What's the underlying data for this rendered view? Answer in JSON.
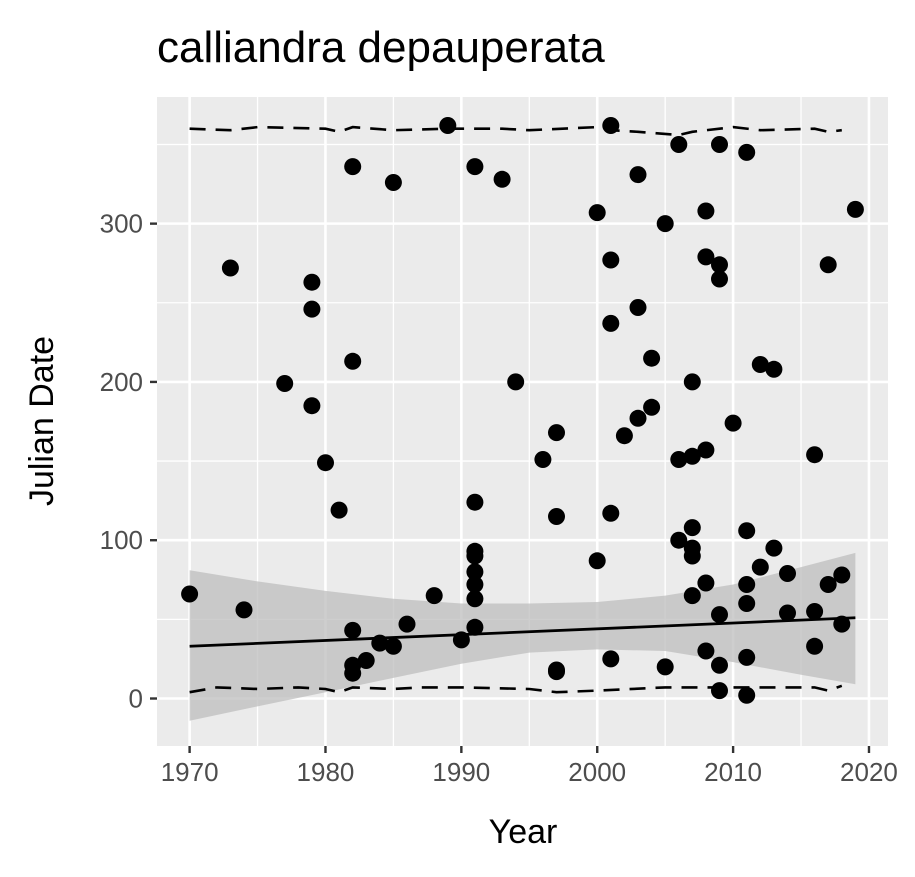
{
  "chart_data": {
    "type": "scatter",
    "title": "calliandra depauperata",
    "xlabel": "Year",
    "ylabel": "Julian Date",
    "xlim": [
      1967.6,
      2021.4
    ],
    "ylim": [
      -30,
      380
    ],
    "x_ticks": [
      1970,
      1980,
      1990,
      2000,
      2010,
      2020
    ],
    "y_ticks": [
      0,
      100,
      200,
      300
    ],
    "grid": true,
    "legend": "none",
    "colors": {
      "panel": "#ebebeb",
      "grid": "#ffffff",
      "point": "#000000",
      "band": "#bdbdbd"
    },
    "points": [
      [
        1970,
        66
      ],
      [
        1973,
        272
      ],
      [
        1974,
        56
      ],
      [
        1977,
        199
      ],
      [
        1979,
        263
      ],
      [
        1979,
        246
      ],
      [
        1979,
        185
      ],
      [
        1980,
        149
      ],
      [
        1981,
        119
      ],
      [
        1982,
        336
      ],
      [
        1982,
        213
      ],
      [
        1982,
        43
      ],
      [
        1982,
        21
      ],
      [
        1982,
        16
      ],
      [
        1983,
        24
      ],
      [
        1984,
        35
      ],
      [
        1985,
        326
      ],
      [
        1985,
        33
      ],
      [
        1986,
        47
      ],
      [
        1988,
        65
      ],
      [
        1989,
        362
      ],
      [
        1990,
        37
      ],
      [
        1991,
        336
      ],
      [
        1991,
        124
      ],
      [
        1991,
        93
      ],
      [
        1991,
        90
      ],
      [
        1991,
        80
      ],
      [
        1991,
        72
      ],
      [
        1991,
        63
      ],
      [
        1991,
        45
      ],
      [
        1993,
        328
      ],
      [
        1994,
        200
      ],
      [
        1996,
        151
      ],
      [
        1997,
        168
      ],
      [
        1997,
        115
      ],
      [
        1997,
        18
      ],
      [
        1997,
        17
      ],
      [
        2000,
        307
      ],
      [
        2000,
        87
      ],
      [
        2001,
        362
      ],
      [
        2001,
        277
      ],
      [
        2001,
        237
      ],
      [
        2001,
        117
      ],
      [
        2001,
        25
      ],
      [
        2002,
        166
      ],
      [
        2003,
        331
      ],
      [
        2003,
        247
      ],
      [
        2003,
        177
      ],
      [
        2004,
        215
      ],
      [
        2004,
        184
      ],
      [
        2005,
        300
      ],
      [
        2005,
        20
      ],
      [
        2006,
        350
      ],
      [
        2006,
        151
      ],
      [
        2006,
        100
      ],
      [
        2007,
        200
      ],
      [
        2007,
        153
      ],
      [
        2007,
        108
      ],
      [
        2007,
        95
      ],
      [
        2007,
        90
      ],
      [
        2007,
        65
      ],
      [
        2008,
        308
      ],
      [
        2008,
        279
      ],
      [
        2008,
        157
      ],
      [
        2008,
        73
      ],
      [
        2008,
        30
      ],
      [
        2009,
        350
      ],
      [
        2009,
        274
      ],
      [
        2009,
        265
      ],
      [
        2009,
        53
      ],
      [
        2009,
        21
      ],
      [
        2009,
        5
      ],
      [
        2010,
        174
      ],
      [
        2011,
        345
      ],
      [
        2011,
        106
      ],
      [
        2011,
        72
      ],
      [
        2011,
        60
      ],
      [
        2011,
        26
      ],
      [
        2011,
        2
      ],
      [
        2012,
        211
      ],
      [
        2012,
        83
      ],
      [
        2013,
        208
      ],
      [
        2013,
        95
      ],
      [
        2014,
        79
      ],
      [
        2014,
        54
      ],
      [
        2016,
        154
      ],
      [
        2016,
        55
      ],
      [
        2016,
        33
      ],
      [
        2017,
        274
      ],
      [
        2017,
        72
      ],
      [
        2018,
        78
      ],
      [
        2018,
        47
      ],
      [
        2019,
        309
      ]
    ],
    "trend_line": {
      "x": [
        1970,
        2019
      ],
      "y": [
        33,
        51
      ]
    },
    "confidence_band": {
      "x": [
        1970,
        1975,
        1980,
        1985,
        1990,
        1995,
        2000,
        2005,
        2010,
        2015,
        2019
      ],
      "upper": [
        81,
        74,
        68,
        63,
        60,
        60,
        61,
        65,
        72,
        83,
        92
      ],
      "lower": [
        -14,
        -5,
        4,
        13,
        22,
        29,
        31,
        30,
        23,
        15,
        9
      ]
    },
    "upper_quantile_line": {
      "x": [
        1970,
        1973,
        1975,
        1980,
        1981,
        1982,
        1985,
        1989,
        1993,
        1995,
        2000,
        2001,
        2003,
        2006,
        2007,
        2010,
        2012,
        2016,
        2017,
        2018
      ],
      "y": [
        360,
        359,
        361,
        360,
        358,
        361,
        359,
        360,
        360,
        359,
        361,
        359,
        358,
        356,
        358,
        361,
        359,
        360,
        358,
        359
      ]
    },
    "lower_quantile_line": {
      "x": [
        1970,
        1972,
        1975,
        1978,
        1980,
        1981,
        1982,
        1985,
        1987,
        1990,
        1995,
        1997,
        2000,
        2005,
        2006,
        2008,
        2011,
        2016,
        2017,
        2018
      ],
      "y": [
        4,
        7,
        6,
        7,
        6,
        4,
        7,
        6,
        7,
        7,
        6,
        4,
        5,
        7,
        7,
        7,
        7,
        7,
        5,
        8
      ]
    }
  }
}
